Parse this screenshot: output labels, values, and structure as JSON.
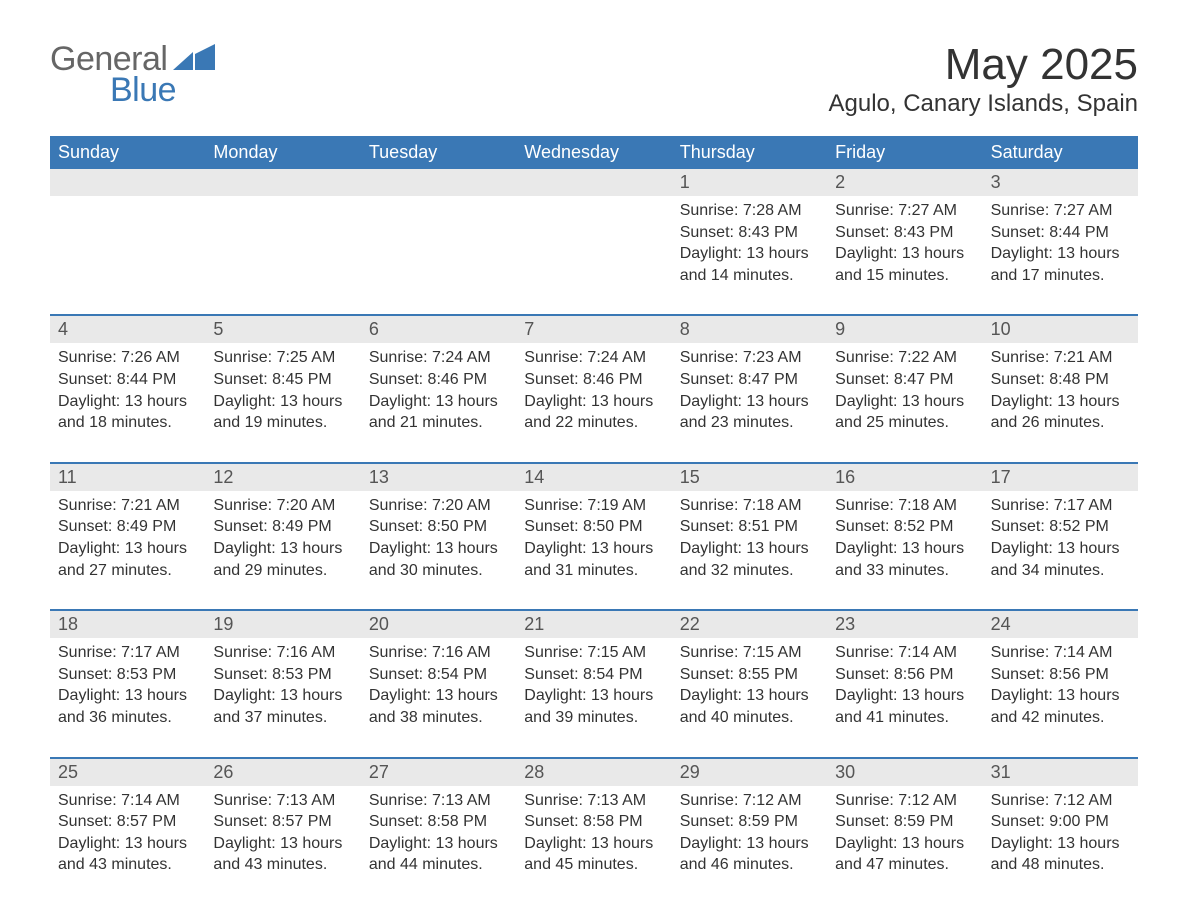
{
  "logo": {
    "general": "General",
    "blue": "Blue",
    "icon_color": "#3a78b5"
  },
  "title": {
    "month": "May 2025",
    "location": "Agulo, Canary Islands, Spain",
    "title_fontsize": 44,
    "location_fontsize": 24,
    "text_color": "#333333"
  },
  "style": {
    "header_bg": "#3a78b5",
    "header_text": "#ffffff",
    "daynum_bg": "#e9e9e9",
    "daynum_text": "#555555",
    "body_text": "#333333",
    "week_border": "#3a78b5",
    "background": "#ffffff",
    "body_fontsize": 16,
    "weekday_fontsize": 18,
    "daynum_fontsize": 18
  },
  "weekdays": [
    "Sunday",
    "Monday",
    "Tuesday",
    "Wednesday",
    "Thursday",
    "Friday",
    "Saturday"
  ],
  "weeks": [
    [
      null,
      null,
      null,
      null,
      {
        "day": "1",
        "sunrise": "Sunrise: 7:28 AM",
        "sunset": "Sunset: 8:43 PM",
        "daylight": "Daylight: 13 hours and 14 minutes."
      },
      {
        "day": "2",
        "sunrise": "Sunrise: 7:27 AM",
        "sunset": "Sunset: 8:43 PM",
        "daylight": "Daylight: 13 hours and 15 minutes."
      },
      {
        "day": "3",
        "sunrise": "Sunrise: 7:27 AM",
        "sunset": "Sunset: 8:44 PM",
        "daylight": "Daylight: 13 hours and 17 minutes."
      }
    ],
    [
      {
        "day": "4",
        "sunrise": "Sunrise: 7:26 AM",
        "sunset": "Sunset: 8:44 PM",
        "daylight": "Daylight: 13 hours and 18 minutes."
      },
      {
        "day": "5",
        "sunrise": "Sunrise: 7:25 AM",
        "sunset": "Sunset: 8:45 PM",
        "daylight": "Daylight: 13 hours and 19 minutes."
      },
      {
        "day": "6",
        "sunrise": "Sunrise: 7:24 AM",
        "sunset": "Sunset: 8:46 PM",
        "daylight": "Daylight: 13 hours and 21 minutes."
      },
      {
        "day": "7",
        "sunrise": "Sunrise: 7:24 AM",
        "sunset": "Sunset: 8:46 PM",
        "daylight": "Daylight: 13 hours and 22 minutes."
      },
      {
        "day": "8",
        "sunrise": "Sunrise: 7:23 AM",
        "sunset": "Sunset: 8:47 PM",
        "daylight": "Daylight: 13 hours and 23 minutes."
      },
      {
        "day": "9",
        "sunrise": "Sunrise: 7:22 AM",
        "sunset": "Sunset: 8:47 PM",
        "daylight": "Daylight: 13 hours and 25 minutes."
      },
      {
        "day": "10",
        "sunrise": "Sunrise: 7:21 AM",
        "sunset": "Sunset: 8:48 PM",
        "daylight": "Daylight: 13 hours and 26 minutes."
      }
    ],
    [
      {
        "day": "11",
        "sunrise": "Sunrise: 7:21 AM",
        "sunset": "Sunset: 8:49 PM",
        "daylight": "Daylight: 13 hours and 27 minutes."
      },
      {
        "day": "12",
        "sunrise": "Sunrise: 7:20 AM",
        "sunset": "Sunset: 8:49 PM",
        "daylight": "Daylight: 13 hours and 29 minutes."
      },
      {
        "day": "13",
        "sunrise": "Sunrise: 7:20 AM",
        "sunset": "Sunset: 8:50 PM",
        "daylight": "Daylight: 13 hours and 30 minutes."
      },
      {
        "day": "14",
        "sunrise": "Sunrise: 7:19 AM",
        "sunset": "Sunset: 8:50 PM",
        "daylight": "Daylight: 13 hours and 31 minutes."
      },
      {
        "day": "15",
        "sunrise": "Sunrise: 7:18 AM",
        "sunset": "Sunset: 8:51 PM",
        "daylight": "Daylight: 13 hours and 32 minutes."
      },
      {
        "day": "16",
        "sunrise": "Sunrise: 7:18 AM",
        "sunset": "Sunset: 8:52 PM",
        "daylight": "Daylight: 13 hours and 33 minutes."
      },
      {
        "day": "17",
        "sunrise": "Sunrise: 7:17 AM",
        "sunset": "Sunset: 8:52 PM",
        "daylight": "Daylight: 13 hours and 34 minutes."
      }
    ],
    [
      {
        "day": "18",
        "sunrise": "Sunrise: 7:17 AM",
        "sunset": "Sunset: 8:53 PM",
        "daylight": "Daylight: 13 hours and 36 minutes."
      },
      {
        "day": "19",
        "sunrise": "Sunrise: 7:16 AM",
        "sunset": "Sunset: 8:53 PM",
        "daylight": "Daylight: 13 hours and 37 minutes."
      },
      {
        "day": "20",
        "sunrise": "Sunrise: 7:16 AM",
        "sunset": "Sunset: 8:54 PM",
        "daylight": "Daylight: 13 hours and 38 minutes."
      },
      {
        "day": "21",
        "sunrise": "Sunrise: 7:15 AM",
        "sunset": "Sunset: 8:54 PM",
        "daylight": "Daylight: 13 hours and 39 minutes."
      },
      {
        "day": "22",
        "sunrise": "Sunrise: 7:15 AM",
        "sunset": "Sunset: 8:55 PM",
        "daylight": "Daylight: 13 hours and 40 minutes."
      },
      {
        "day": "23",
        "sunrise": "Sunrise: 7:14 AM",
        "sunset": "Sunset: 8:56 PM",
        "daylight": "Daylight: 13 hours and 41 minutes."
      },
      {
        "day": "24",
        "sunrise": "Sunrise: 7:14 AM",
        "sunset": "Sunset: 8:56 PM",
        "daylight": "Daylight: 13 hours and 42 minutes."
      }
    ],
    [
      {
        "day": "25",
        "sunrise": "Sunrise: 7:14 AM",
        "sunset": "Sunset: 8:57 PM",
        "daylight": "Daylight: 13 hours and 43 minutes."
      },
      {
        "day": "26",
        "sunrise": "Sunrise: 7:13 AM",
        "sunset": "Sunset: 8:57 PM",
        "daylight": "Daylight: 13 hours and 43 minutes."
      },
      {
        "day": "27",
        "sunrise": "Sunrise: 7:13 AM",
        "sunset": "Sunset: 8:58 PM",
        "daylight": "Daylight: 13 hours and 44 minutes."
      },
      {
        "day": "28",
        "sunrise": "Sunrise: 7:13 AM",
        "sunset": "Sunset: 8:58 PM",
        "daylight": "Daylight: 13 hours and 45 minutes."
      },
      {
        "day": "29",
        "sunrise": "Sunrise: 7:12 AM",
        "sunset": "Sunset: 8:59 PM",
        "daylight": "Daylight: 13 hours and 46 minutes."
      },
      {
        "day": "30",
        "sunrise": "Sunrise: 7:12 AM",
        "sunset": "Sunset: 8:59 PM",
        "daylight": "Daylight: 13 hours and 47 minutes."
      },
      {
        "day": "31",
        "sunrise": "Sunrise: 7:12 AM",
        "sunset": "Sunset: 9:00 PM",
        "daylight": "Daylight: 13 hours and 48 minutes."
      }
    ]
  ]
}
